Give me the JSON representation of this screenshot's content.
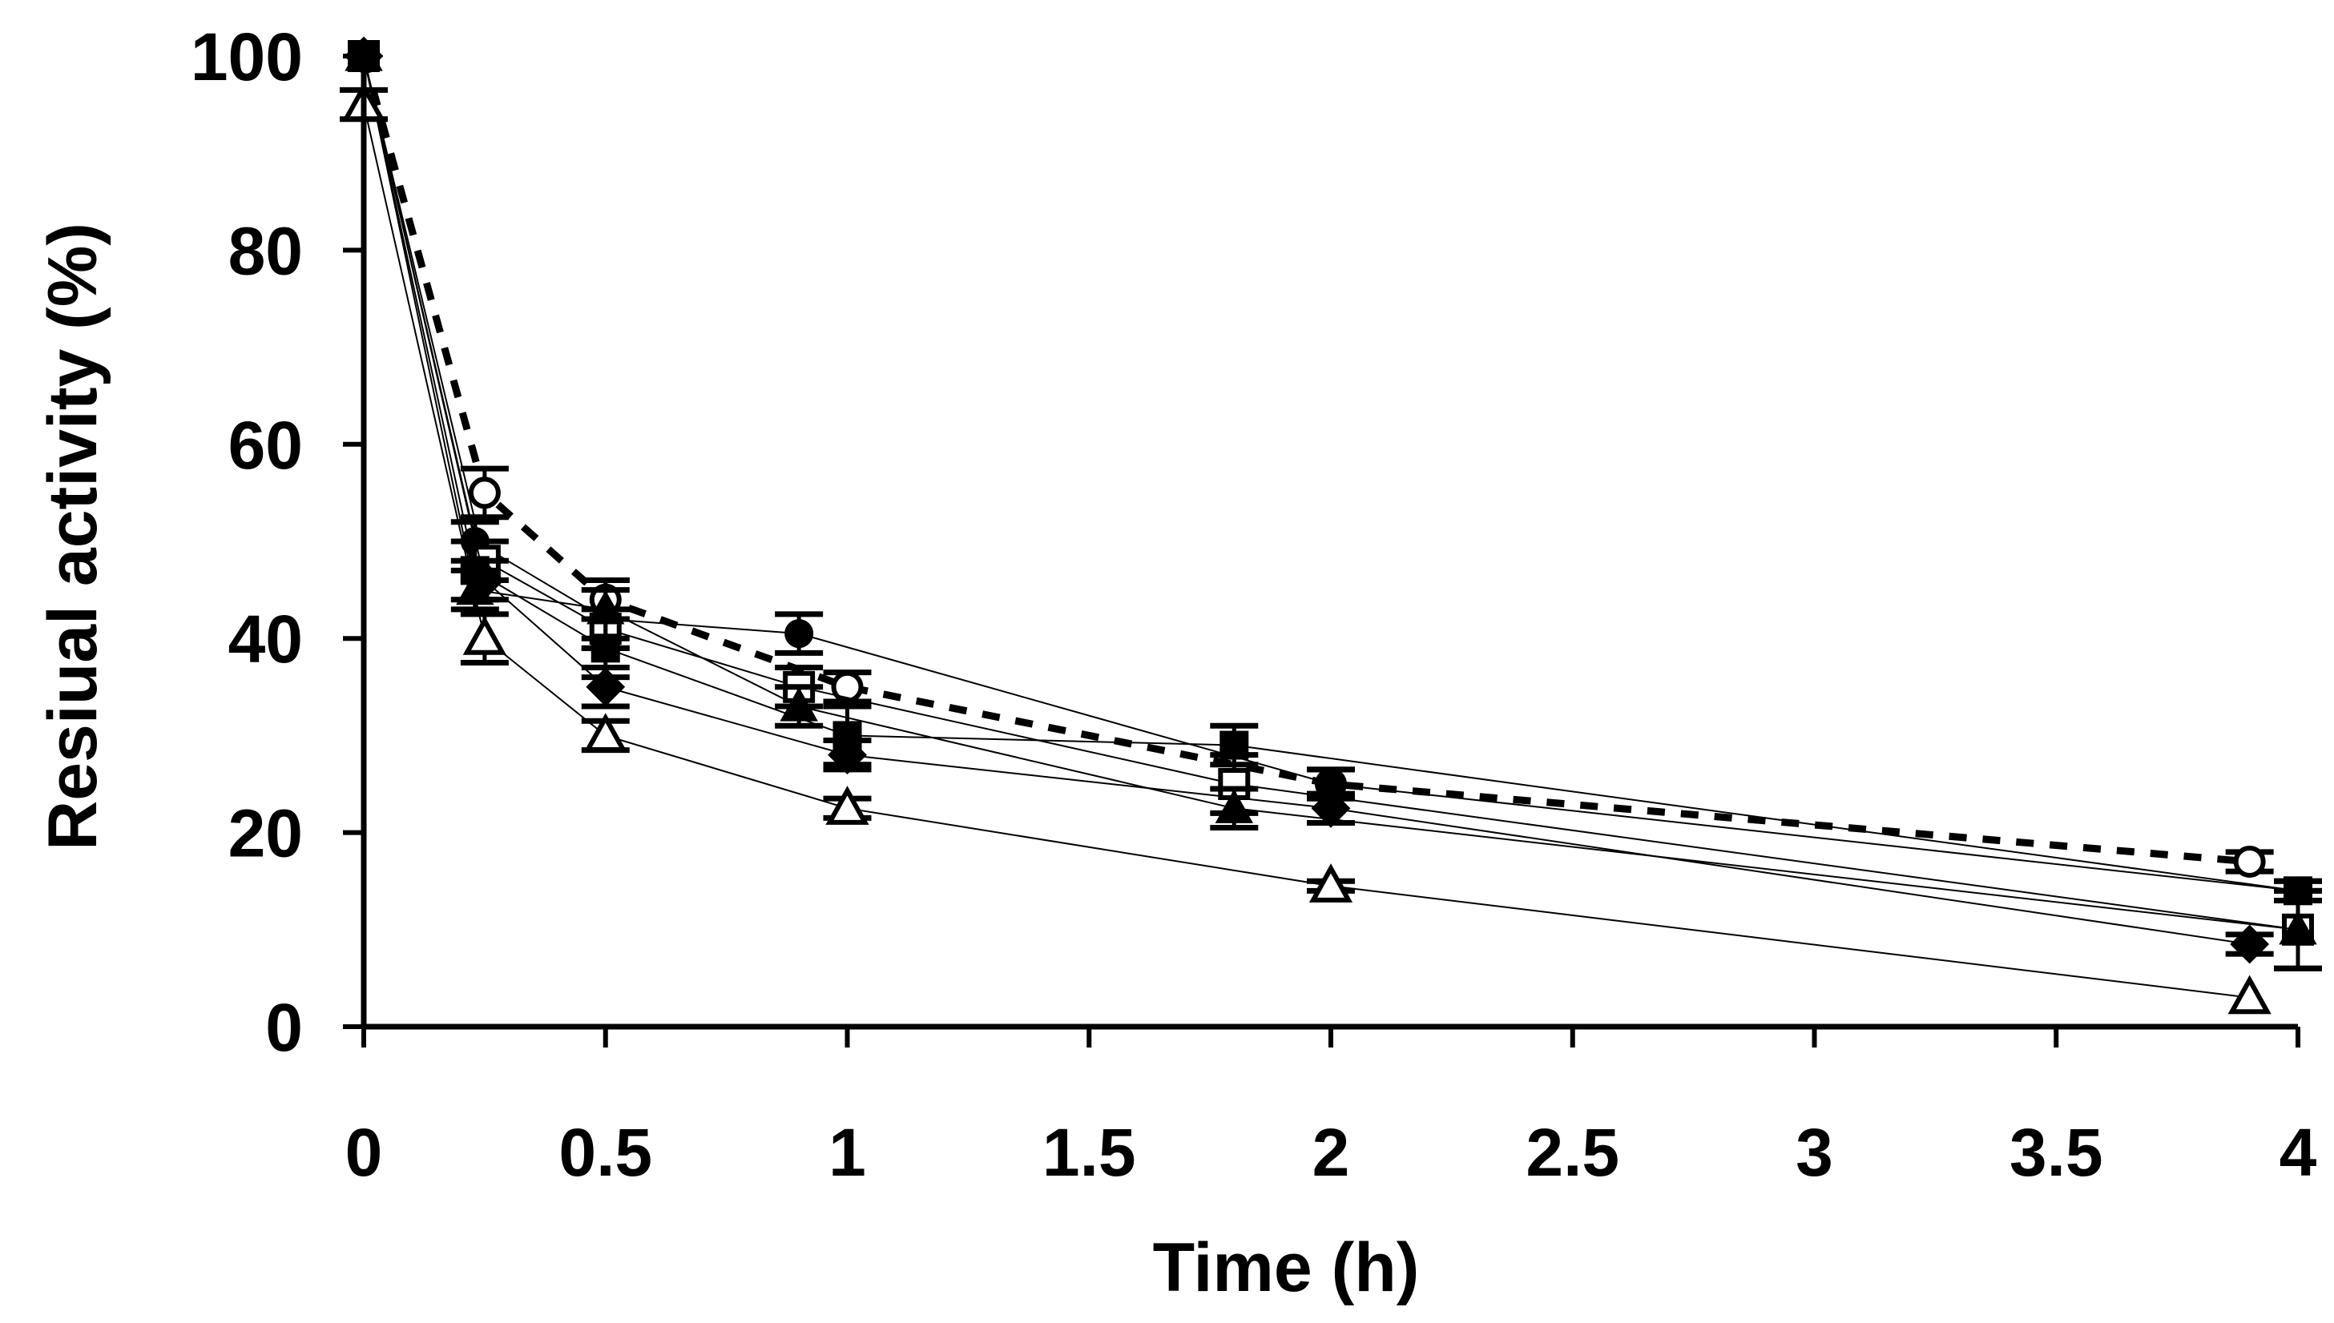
{
  "chart_data": {
    "type": "line",
    "title": "",
    "xlabel": "Time (h)",
    "ylabel": "Resiual activity (%)",
    "xlim": [
      0,
      4
    ],
    "ylim": [
      0,
      100
    ],
    "x_ticks": [
      "0",
      "0.5",
      "1",
      "1.5",
      "2",
      "2.5",
      "3",
      "3.5",
      "4"
    ],
    "y_ticks": [
      "0",
      "20",
      "40",
      "60",
      "80",
      "100"
    ],
    "grid": false,
    "legend": "none",
    "series": [
      {
        "name": "open circle (dashed)",
        "marker": "circle-open",
        "line": "dashed",
        "x": [
          0,
          0.25,
          0.5,
          1,
          2,
          3.9
        ],
        "y": [
          100,
          55,
          44,
          35,
          25,
          17
        ],
        "err": [
          0,
          2.5,
          2,
          1.5,
          1.5,
          1
        ]
      },
      {
        "name": "filled circle",
        "marker": "circle",
        "line": "solid",
        "x": [
          0,
          0.23,
          0.5,
          0.9,
          2,
          4
        ],
        "y": [
          100,
          50,
          42,
          40.5,
          25,
          14
        ],
        "err": [
          0,
          2,
          3,
          2,
          1.5,
          1
        ]
      },
      {
        "name": "open square",
        "marker": "square-open",
        "line": "solid",
        "x": [
          0,
          0.25,
          0.5,
          0.9,
          1.8,
          4
        ],
        "y": [
          100,
          48,
          41,
          35,
          25,
          10
        ],
        "err": [
          0,
          2,
          2,
          2,
          3,
          4
        ]
      },
      {
        "name": "filled square",
        "marker": "square",
        "line": "solid",
        "x": [
          0,
          0.23,
          0.5,
          1,
          1.8,
          4
        ],
        "y": [
          100,
          47,
          39,
          30,
          29,
          14
        ],
        "err": [
          0,
          3,
          3,
          3,
          2,
          1
        ]
      },
      {
        "name": "filled diamond",
        "marker": "diamond",
        "line": "solid",
        "x": [
          0,
          0.25,
          0.5,
          1,
          2,
          3.9
        ],
        "y": [
          100,
          46,
          35,
          28,
          22.5,
          8.5
        ],
        "err": [
          0,
          2,
          2,
          1.5,
          1.5,
          1
        ]
      },
      {
        "name": "filled triangle",
        "marker": "triangle",
        "line": "solid",
        "x": [
          0,
          0.23,
          0.5,
          0.9,
          1.8,
          4
        ],
        "y": [
          100,
          45,
          43,
          33,
          22.5,
          10
        ],
        "err": [
          0,
          2,
          3,
          2,
          2,
          4
        ]
      },
      {
        "name": "open triangle",
        "marker": "triangle-open",
        "line": "solid",
        "x": [
          0,
          0.25,
          0.5,
          1,
          2,
          3.9
        ],
        "y": [
          95,
          40,
          30,
          22.5,
          14.5,
          3
        ],
        "err": [
          1.5,
          2.5,
          1.5,
          1,
          0.5,
          0
        ]
      }
    ]
  }
}
